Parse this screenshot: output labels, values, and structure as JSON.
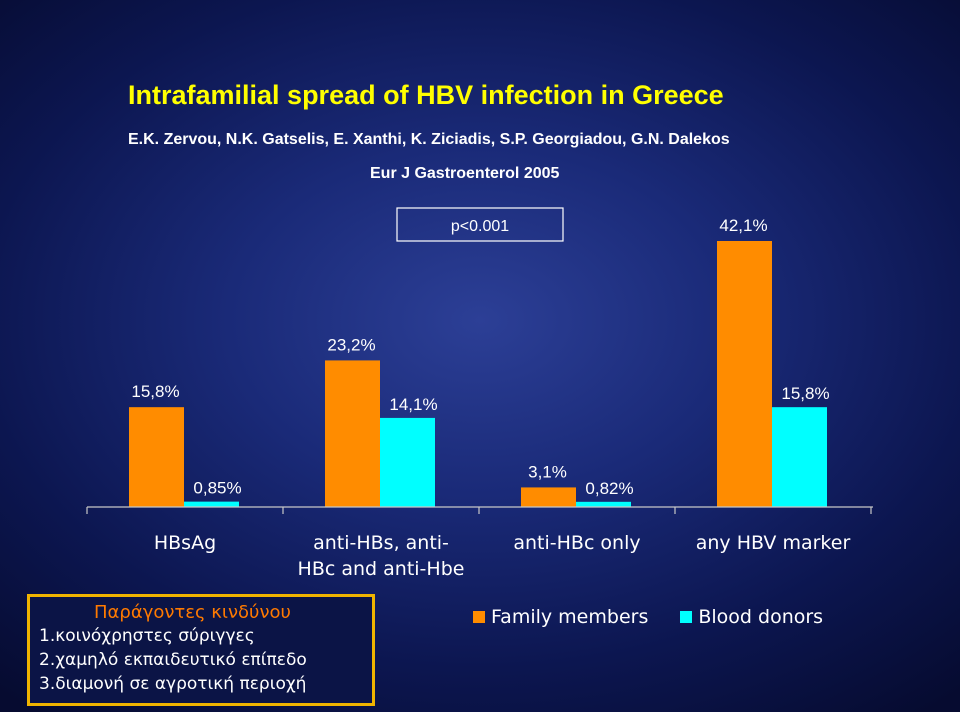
{
  "header": {
    "title": "Intrafamilial spread of HBV infection in Greece",
    "authors": "E.K. Zervou, N.K. Gatselis, E. Xanthi, K. Ziciadis, S.P. Georgiadou, G.N. Dalekos",
    "journal": "Eur J Gastroenterol 2005"
  },
  "chart_data": {
    "type": "bar",
    "categories": [
      "HBsAg",
      "anti-HBs, anti-HBc and anti-Hbe",
      "anti-HBc only",
      "any HBV marker"
    ],
    "category_lines": [
      [
        "HBsAg"
      ],
      [
        "anti-HBs, anti-",
        "HBc and anti-Hbe"
      ],
      [
        "anti-HBc only"
      ],
      [
        "any HBV marker"
      ]
    ],
    "series": [
      {
        "name": "Family members",
        "values": [
          15.8,
          23.2,
          3.1,
          42.1
        ],
        "labels": [
          "15,8%",
          "23,2%",
          "3,1%",
          "42,1%"
        ],
        "color": "#ff8c00"
      },
      {
        "name": "Blood donors",
        "values": [
          0.85,
          14.1,
          0.82,
          15.8
        ],
        "labels": [
          "0,85%",
          "14,1%",
          "0,82%",
          "15,8%"
        ],
        "color": "#00ffff"
      }
    ],
    "ylim": [
      0,
      42.1
    ],
    "annotation": "p<0.001",
    "legend_position": "bottom-right",
    "grid": false
  },
  "risk_factors": {
    "title": "Παράγοντες κινδύνου",
    "items": [
      "1.κοινόχρηστες σύριγγες",
      "2.χαμηλό εκπαιδευτικό επίπεδο",
      "3.διαμονή σε αγροτική περιοχή"
    ]
  },
  "colors": {
    "title": "#ffff00",
    "family": "#ff8c00",
    "donors": "#00ffff",
    "box_border": "#f0b400",
    "risk_title": "#ff7a00"
  }
}
